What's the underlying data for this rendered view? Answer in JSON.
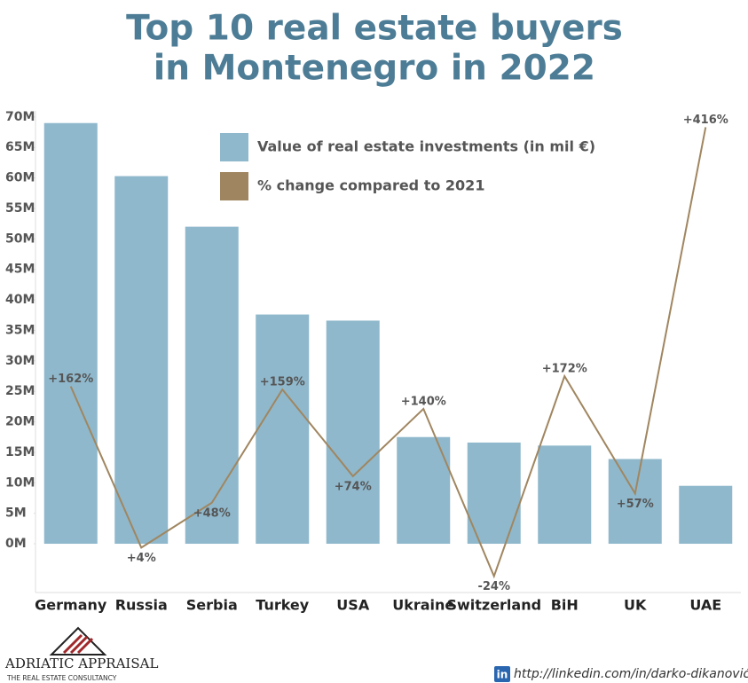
{
  "chart_data": {
    "type": "bar",
    "title": "Top 10 real estate buyers in Montenegro in 2022",
    "title_lines": [
      "Top 10 real estate buyers",
      "in Montenegro in 2022"
    ],
    "categories": [
      "Germany",
      "Russia",
      "Serbia",
      "Turkey",
      "USA",
      "Ukraine",
      "Switzerland",
      "BiH",
      "UK",
      "UAE"
    ],
    "series": [
      {
        "name": "Value of real estate investments (in mil €)",
        "type": "bar",
        "color": "#8fb8cc",
        "values": [
          69,
          60.3,
          52,
          37.6,
          36.6,
          17.5,
          16.6,
          16.1,
          13.9,
          9.5
        ]
      },
      {
        "name": "% change compared to 2021",
        "type": "line",
        "axis": "y2",
        "color": "#a08660",
        "values": [
          162,
          4,
          48,
          159,
          74,
          140,
          -24,
          172,
          57,
          416
        ],
        "value_labels": [
          "+162%",
          "+4%",
          "+48%",
          "+159%",
          "+74%",
          "+140%",
          "-24%",
          "+172%",
          "+57%",
          "+416%"
        ]
      }
    ],
    "ylim": [
      -8,
      71
    ],
    "yticks": [
      {
        "value": 0,
        "label": "0M"
      },
      {
        "value": 5,
        "label": "5M"
      },
      {
        "value": 10,
        "label": "10M"
      },
      {
        "value": 15,
        "label": "15M"
      },
      {
        "value": 20,
        "label": "20M"
      },
      {
        "value": 25,
        "label": "25M"
      },
      {
        "value": 30,
        "label": "30M"
      },
      {
        "value": 35,
        "label": "35M"
      },
      {
        "value": 40,
        "label": "40M"
      },
      {
        "value": 45,
        "label": "45M"
      },
      {
        "value": 50,
        "label": "50M"
      },
      {
        "value": 55,
        "label": "55M"
      },
      {
        "value": 60,
        "label": "60M"
      },
      {
        "value": 65,
        "label": "65M"
      },
      {
        "value": 70,
        "label": "70M"
      }
    ],
    "y2lim": [
      -40,
      432
    ],
    "legend_position": "top"
  },
  "footer": {
    "brand": "ADRIATIC APPRAISAL",
    "tagline": "THE REAL ESTATE CONSULTANCY",
    "badge": "in",
    "url": "http://linkedin.com/in/darko-dikanović"
  }
}
